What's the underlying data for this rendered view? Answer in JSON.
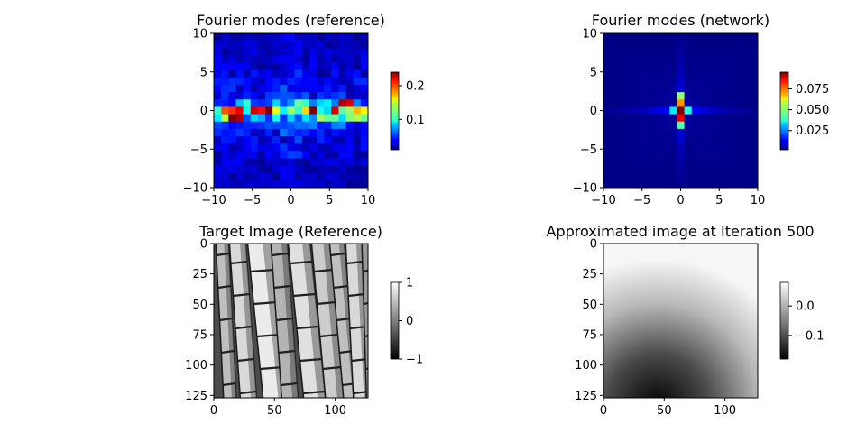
{
  "figure": {
    "panels": [
      "fourier_reference",
      "fourier_network",
      "target_image",
      "approx_image"
    ]
  },
  "chart_data": [
    {
      "id": "fourier_reference",
      "type": "heatmap",
      "title": "Fourier modes (reference)",
      "xlim": [
        -10,
        10
      ],
      "ylim": [
        -10,
        10
      ],
      "xticks": [
        -10,
        -5,
        0,
        5,
        10
      ],
      "yticks": [
        10,
        5,
        0,
        -5,
        -10
      ],
      "colormap": "jet",
      "colorbar": {
        "min": 0.01,
        "max": 0.24,
        "ticks": [
          0.1,
          0.2
        ],
        "tick_labels": [
          "0.1",
          "0.2"
        ]
      },
      "grid_size": 21,
      "row_profile": [
        {
          "ky": 0,
          "value": 0.22
        },
        {
          "ky": 1,
          "value": 0.11
        },
        {
          "ky": -1,
          "value": 0.14
        },
        {
          "ky": 2,
          "value": 0.06
        },
        {
          "ky": -2,
          "value": 0.07
        }
      ],
      "hot_cells": [
        {
          "kx": -8,
          "ky": -1,
          "value": 0.24
        },
        {
          "kx": -7,
          "ky": -1,
          "value": 0.23
        },
        {
          "kx": -8,
          "ky": 0,
          "value": 0.2
        },
        {
          "kx": -5,
          "ky": 0,
          "value": 0.22
        },
        {
          "kx": -3,
          "ky": 0,
          "value": 0.24
        },
        {
          "kx": 0,
          "ky": 0,
          "value": 0.13
        },
        {
          "kx": 1,
          "ky": 1,
          "value": 0.12
        },
        {
          "kx": 3,
          "ky": 0,
          "value": 0.24
        },
        {
          "kx": 6,
          "ky": 0,
          "value": 0.22
        },
        {
          "kx": 7,
          "ky": 1,
          "value": 0.23
        },
        {
          "kx": 8,
          "ky": 1,
          "value": 0.22
        },
        {
          "kx": 8,
          "ky": 0,
          "value": 0.13
        },
        {
          "kx": -2,
          "ky": -1,
          "value": 0.1
        },
        {
          "kx": 2,
          "ky": -1,
          "value": 0.09
        }
      ]
    },
    {
      "id": "fourier_network",
      "type": "heatmap",
      "title": "Fourier modes (network)",
      "xlim": [
        -10,
        10
      ],
      "ylim": [
        -10,
        10
      ],
      "xticks": [
        -10,
        -5,
        0,
        5,
        10
      ],
      "yticks": [
        10,
        5,
        0,
        -5,
        -10
      ],
      "colormap": "jet",
      "colorbar": {
        "min": 0.002,
        "max": 0.095,
        "ticks": [
          0.025,
          0.05,
          0.075
        ],
        "tick_labels": [
          "0.025",
          "0.050",
          "0.075"
        ]
      },
      "grid_size": 21,
      "cells": [
        {
          "kx": 0,
          "ky": 0,
          "value": 0.095
        },
        {
          "kx": 0,
          "ky": 1,
          "value": 0.07
        },
        {
          "kx": 0,
          "ky": -1,
          "value": 0.085
        },
        {
          "kx": 0,
          "ky": 2,
          "value": 0.05
        },
        {
          "kx": 0,
          "ky": -2,
          "value": 0.045
        },
        {
          "kx": 1,
          "ky": 0,
          "value": 0.04
        },
        {
          "kx": -1,
          "ky": 0,
          "value": 0.035
        }
      ]
    },
    {
      "id": "target_image",
      "type": "heatmap",
      "title": "Target Image (Reference)",
      "xlim": [
        0,
        127
      ],
      "ylim": [
        127,
        0
      ],
      "xticks": [
        0,
        50,
        100
      ],
      "yticks": [
        0,
        25,
        50,
        75,
        100,
        125
      ],
      "colormap": "gray",
      "colorbar": {
        "min": -1,
        "max": 1,
        "ticks": [
          1,
          0,
          -1
        ],
        "tick_labels": [
          "1",
          "0",
          "−1"
        ]
      },
      "image_size": 128
    },
    {
      "id": "approx_image",
      "type": "heatmap",
      "title": "Approximated image at Iteration 500",
      "xlim": [
        0,
        127
      ],
      "ylim": [
        127,
        0
      ],
      "xticks": [
        0,
        50,
        100
      ],
      "yticks": [
        0,
        25,
        50,
        75,
        100,
        125
      ],
      "colormap": "gray",
      "colorbar": {
        "min": -0.18,
        "max": 0.08,
        "ticks": [
          0.0,
          -0.1
        ],
        "tick_labels": [
          "0.0",
          "−0.1"
        ]
      },
      "image_size": 128
    }
  ]
}
